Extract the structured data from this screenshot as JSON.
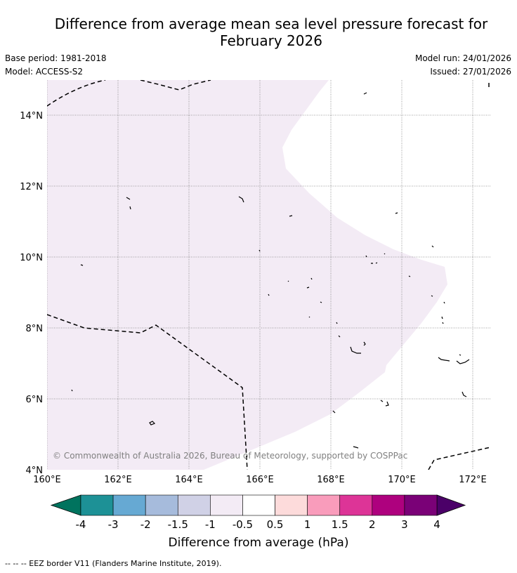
{
  "title_line1": "Difference from average mean sea level pressure forecast for",
  "title_line2": "February 2026",
  "base_period": "Base period: 1981-2018",
  "model": "Model: ACCESS-S2",
  "model_run": "Model run: 24/01/2026",
  "issued": "Issued: 27/01/2026",
  "copyright": "© Commonwealth of Australia 2026, Bureau of Meteorology, supported by COSPPac",
  "map": {
    "lon_ticks": [
      "160°E",
      "162°E",
      "164°E",
      "166°E",
      "168°E",
      "170°E",
      "172°E"
    ],
    "lat_ticks": [
      "14°N",
      "12°N",
      "10°N",
      "8°N",
      "6°N",
      "4°N"
    ],
    "anomaly_region_color": "#f3ebf5",
    "anomaly_region_class": "-1 to -0.5"
  },
  "colorbar": {
    "title": "Difference from average (hPa)",
    "tick_labels": [
      "-4",
      "-3",
      "-2",
      "-1.5",
      "-1",
      "-0.5",
      "0.5",
      "1",
      "1.5",
      "2",
      "3",
      "4"
    ],
    "low_extend_color": "#00735e",
    "high_extend_color": "#4b0068",
    "colors": [
      "#1d9196",
      "#66a9d3",
      "#a6bbdc",
      "#d0d1e6",
      "#f3ebf5",
      "#ffffff",
      "#fddbdb",
      "#f99cbb",
      "#dd3497",
      "#ae017e",
      "#7a0177"
    ]
  },
  "footer": "--  --  -- EEZ border V11 (Flanders Marine Institute, 2019)."
}
